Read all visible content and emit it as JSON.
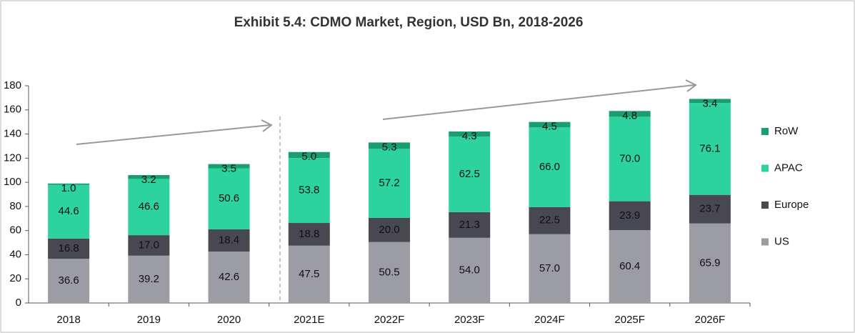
{
  "chart_data": {
    "type": "stacked_bar",
    "title": "Exhibit 5.4: CDMO Market, Region, USD  Bn, 2018-2026",
    "categories": [
      "2018",
      "2019",
      "2020",
      "2021E",
      "2022F",
      "2023F",
      "2024F",
      "2025F",
      "2026F"
    ],
    "series": [
      {
        "name": "US",
        "color": "#9c9ca4",
        "values": [
          36.6,
          39.2,
          42.6,
          47.5,
          50.5,
          54,
          57,
          60.4,
          65.9
        ],
        "value_labels": [
          "36.6",
          "39.2",
          "42.6",
          "47.5",
          "50.5",
          "54.0",
          "57.0",
          "60.4",
          "65.9"
        ]
      },
      {
        "name": "Europe",
        "color": "#484852",
        "values": [
          16.8,
          17,
          18.4,
          18.8,
          20,
          21.3,
          22.5,
          23.9,
          23.7
        ],
        "value_labels": [
          "16.8",
          "17.0",
          "18.4",
          "18.8",
          "20.0",
          "21.3",
          "22.5",
          "23.9",
          "23.7"
        ]
      },
      {
        "name": "APAC",
        "color": "#2dd39e",
        "values": [
          44.6,
          46.6,
          50.6,
          53.8,
          57.2,
          62.5,
          66,
          70,
          76.1
        ],
        "value_labels": [
          "44.6",
          "46.6",
          "50.6",
          "53.8",
          "57.2",
          "62.5",
          "66.0",
          "70.0",
          "76.1"
        ]
      },
      {
        "name": "RoW",
        "color": "#1b9e6e",
        "values": [
          1,
          3.2,
          3.5,
          5,
          5.3,
          4.3,
          4.5,
          4.8,
          3.4
        ],
        "value_labels": [
          "1.0",
          "3.2",
          "3.5",
          "5.0",
          "5.3",
          "4.3",
          "4.5",
          "4.8",
          "3.4"
        ]
      }
    ],
    "ylim": [
      0,
      180
    ],
    "yticks": [
      0,
      20,
      40,
      60,
      80,
      100,
      120,
      140,
      160,
      180
    ],
    "grid": false
  }
}
